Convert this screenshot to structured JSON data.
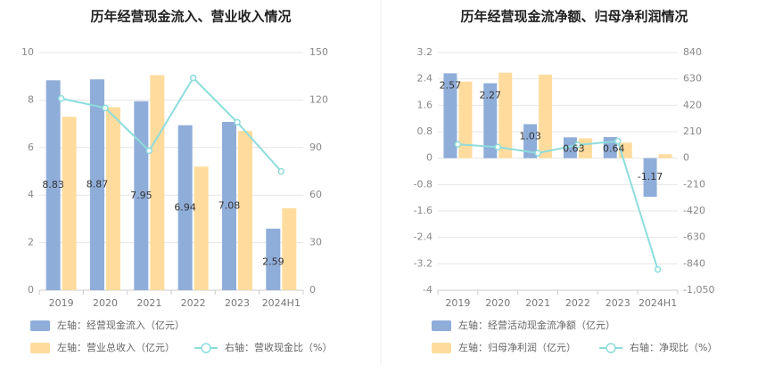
{
  "colors": {
    "bar_primary": "#8fadd9",
    "bar_secondary": "#ffdc9e",
    "line": "#8ddcdc",
    "grid": "#e6e6e6",
    "divider": "#ececec"
  },
  "chart_data": [
    {
      "type": "bar",
      "title": "历年经营现金流入、营业收入情况",
      "categories": [
        "2019",
        "2020",
        "2021",
        "2022",
        "2023",
        "2024H1"
      ],
      "left_axis": {
        "ylim": [
          0,
          10
        ],
        "ticks": [
          "0",
          "2",
          "4",
          "6",
          "8",
          "10"
        ]
      },
      "right_axis": {
        "ylim": [
          0,
          150
        ],
        "ticks": [
          "0",
          "30",
          "60",
          "90",
          "120",
          "150"
        ]
      },
      "series": [
        {
          "name": "左轴：经营现金流入（亿元）",
          "axis": "left",
          "kind": "bar",
          "values": [
            8.83,
            8.87,
            7.95,
            6.94,
            7.08,
            2.59
          ],
          "labels": [
            "8.83",
            "8.87",
            "7.95",
            "6.94",
            "7.08",
            "2.59"
          ]
        },
        {
          "name": "左轴：营业总收入（亿元）",
          "axis": "left",
          "kind": "bar",
          "values": [
            7.3,
            7.7,
            9.05,
            5.2,
            6.7,
            3.45
          ]
        },
        {
          "name": "右轴：营收现金比（%）",
          "axis": "right",
          "kind": "line",
          "values": [
            121,
            115,
            88,
            134,
            106,
            75
          ]
        }
      ]
    },
    {
      "type": "bar",
      "title": "历年经营现金流净额、归母净利润情况",
      "categories": [
        "2019",
        "2020",
        "2021",
        "2022",
        "2023",
        "2024H1"
      ],
      "left_axis": {
        "ylim": [
          -4,
          3.2
        ],
        "ticks": [
          "-4",
          "-3.2",
          "-2.4",
          "-1.6",
          "-0.8",
          "0",
          "0.8",
          "1.6",
          "2.4",
          "3.2"
        ]
      },
      "right_axis": {
        "ylim": [
          -1050,
          840
        ],
        "ticks": [
          "-1,050",
          "-840",
          "-630",
          "-420",
          "-210",
          "0",
          "210",
          "420",
          "630",
          "840"
        ]
      },
      "series": [
        {
          "name": "左轴：经营活动现金流净额（亿元）",
          "axis": "left",
          "kind": "bar",
          "values": [
            2.57,
            2.27,
            1.03,
            0.63,
            0.64,
            -1.17
          ],
          "labels": [
            "2.57",
            "2.27",
            "1.03",
            "0.63",
            "0.64",
            "-1.17"
          ]
        },
        {
          "name": "左轴：归母净利润（亿元）",
          "axis": "left",
          "kind": "bar",
          "values": [
            2.32,
            2.59,
            2.53,
            0.6,
            0.47,
            0.12
          ]
        },
        {
          "name": "右轴：净现比（%）",
          "axis": "right",
          "kind": "line",
          "values": [
            110,
            88,
            40,
            105,
            136,
            -885
          ]
        }
      ]
    }
  ]
}
